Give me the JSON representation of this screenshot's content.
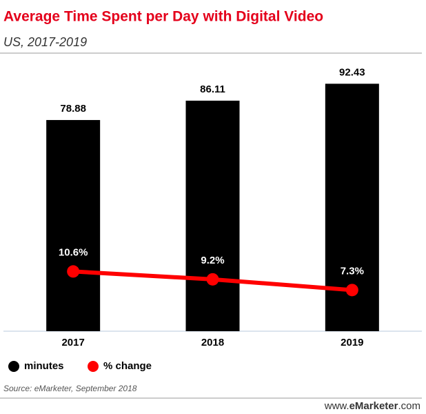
{
  "chart_data": {
    "type": "bar",
    "title": "Average Time Spent per Day with Digital Video",
    "subtitle": "US, 2017-2019",
    "categories": [
      "2017",
      "2018",
      "2019"
    ],
    "series": [
      {
        "name": "minutes",
        "type": "bar",
        "color": "#000000",
        "values": [
          78.88,
          86.11,
          92.43
        ]
      },
      {
        "name": "% change",
        "type": "line",
        "axis": "y2",
        "color": "#ff0000",
        "values": [
          10.6,
          9.2,
          7.3
        ],
        "value_labels": [
          "10.6%",
          "9.2%",
          "7.3%"
        ]
      }
    ],
    "ylim": [
      0,
      100
    ],
    "y2lim": [
      0,
      47.5
    ],
    "source": "Source: eMarketer, September 2018",
    "branding": [
      "www.",
      "eMarketer",
      ".com"
    ]
  }
}
